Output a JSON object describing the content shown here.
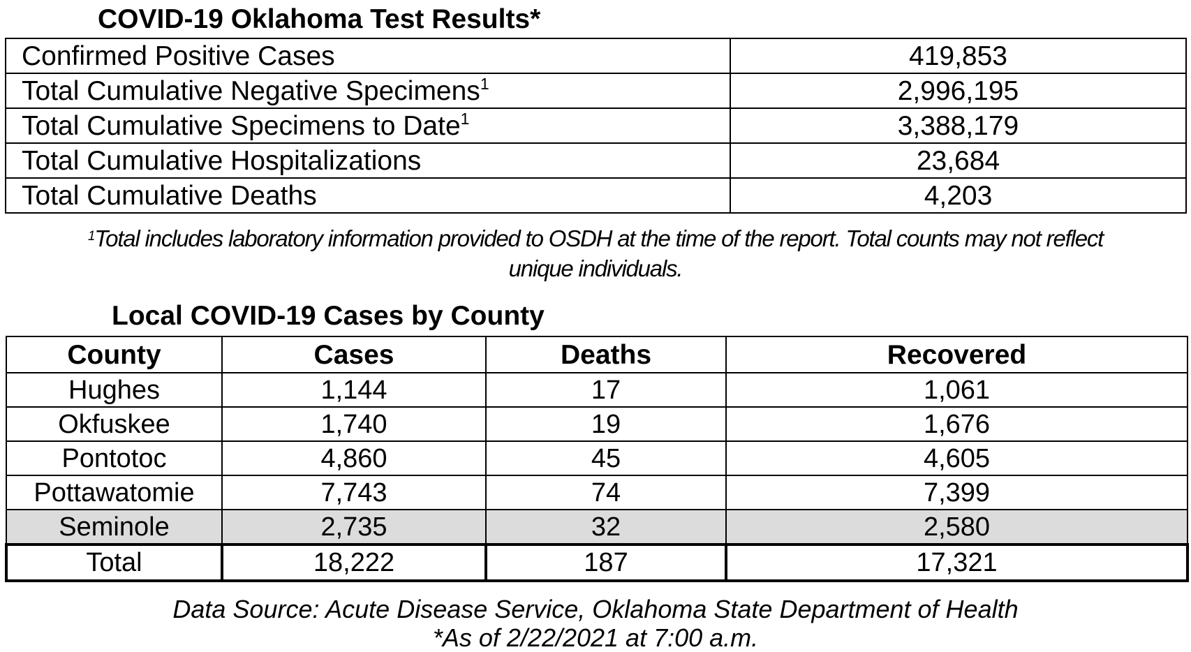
{
  "test_results": {
    "title": "COVID-19 Oklahoma Test Results*",
    "rows": [
      {
        "label": "Confirmed Positive Cases",
        "sup": "",
        "value": "419,853"
      },
      {
        "label": "Total Cumulative Negative Specimens",
        "sup": "1",
        "value": "2,996,195"
      },
      {
        "label": "Total Cumulative Specimens to Date",
        "sup": "1",
        "value": "3,388,179"
      },
      {
        "label": "Total Cumulative Hospitalizations",
        "sup": "",
        "value": "23,684"
      },
      {
        "label": "Total Cumulative Deaths",
        "sup": "",
        "value": "4,203"
      }
    ],
    "footnote_marker": "1",
    "footnote_line1": "Total includes laboratory information provided to OSDH at the time of the report. Total counts may not reflect",
    "footnote_line2": "unique individuals."
  },
  "county_cases": {
    "title": "Local COVID-19 Cases by County",
    "headers": [
      "County",
      "Cases",
      "Deaths",
      "Recovered"
    ],
    "rows": [
      [
        "Hughes",
        "1,144",
        "17",
        "1,061"
      ],
      [
        "Okfuskee",
        "1,740",
        "19",
        "1,676"
      ],
      [
        "Pontotoc",
        "4,860",
        "45",
        "4,605"
      ],
      [
        "Pottawatomie",
        "7,743",
        "74",
        "7,399"
      ],
      [
        "Seminole",
        "2,735",
        "32",
        "2,580"
      ]
    ],
    "total": [
      "Total",
      "18,222",
      "187",
      "17,321"
    ],
    "highlight_color": "#dcdcdc"
  },
  "source": {
    "line1": "Data Source: Acute Disease Service, Oklahoma State Department of Health",
    "line2": "*As of 2/22/2021 at 7:00 a.m."
  }
}
